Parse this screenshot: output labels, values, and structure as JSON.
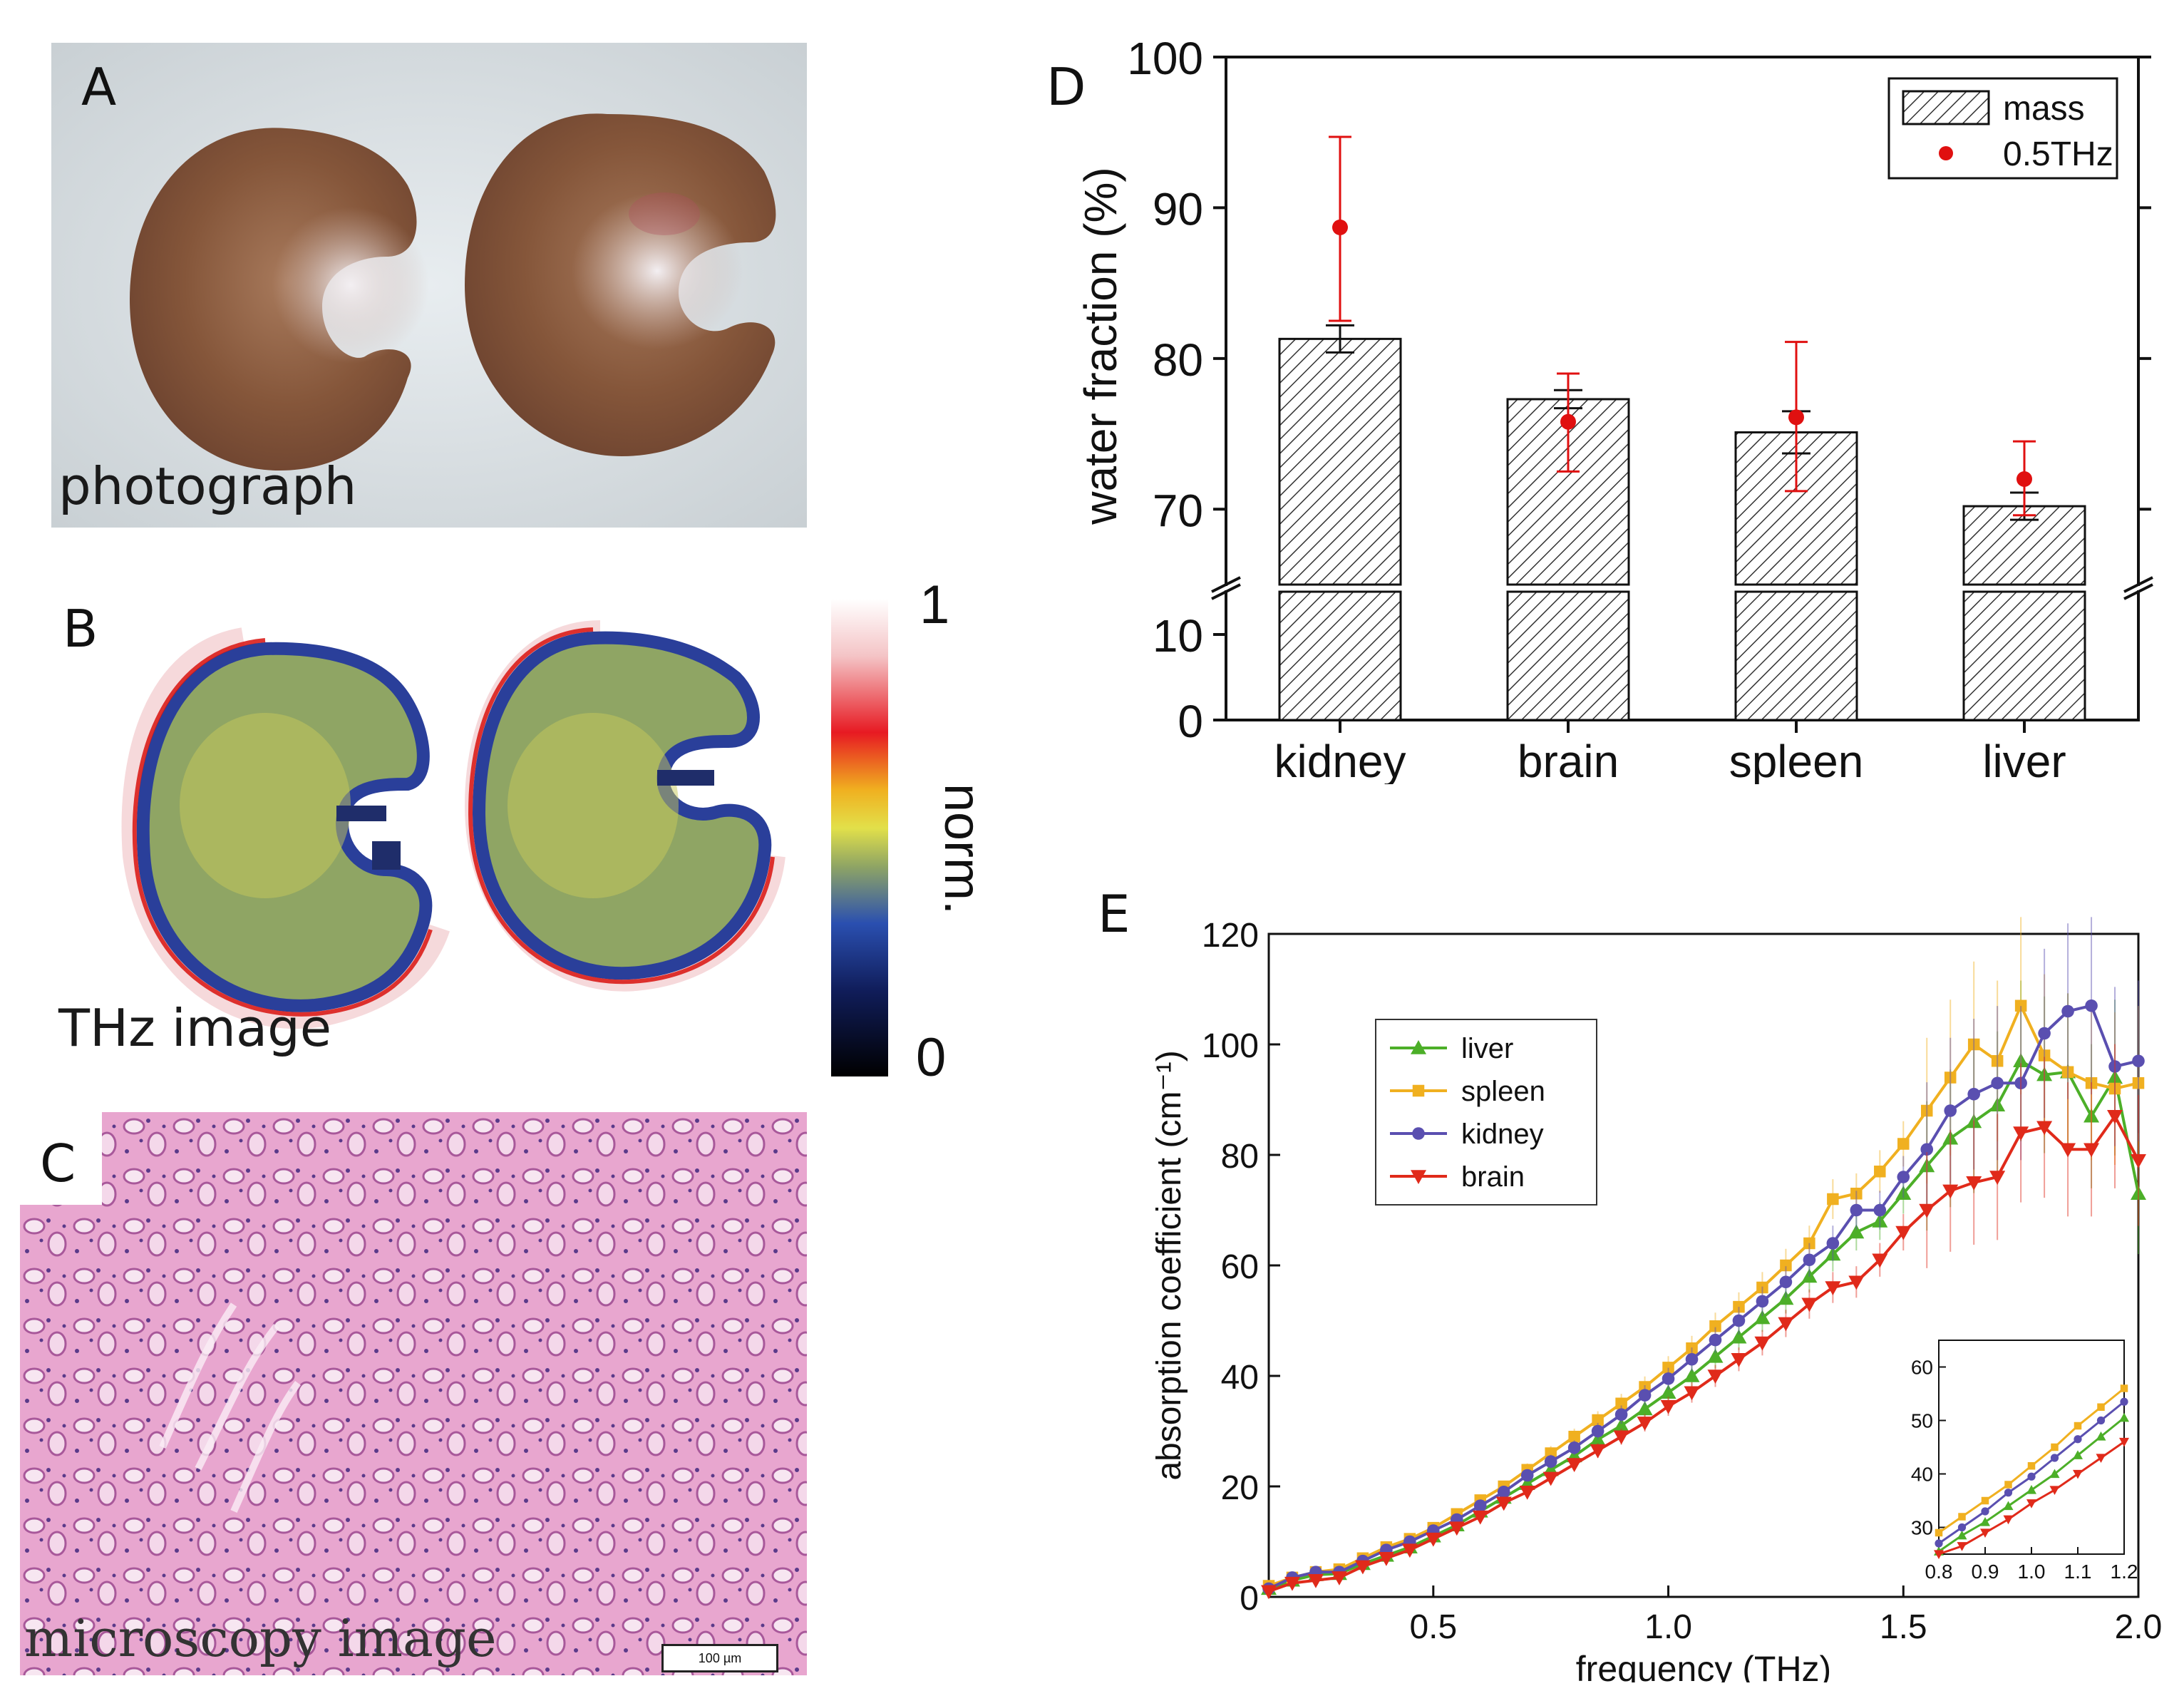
{
  "panels": {
    "a": {
      "letter": "A",
      "caption": "photograph"
    },
    "b": {
      "letter": "B",
      "caption": "THz image",
      "colorbar": {
        "max": "1",
        "min": "0",
        "label": "norm."
      }
    },
    "c": {
      "letter": "C",
      "caption": "microscopy image",
      "scalebar": "100 µm"
    },
    "d": {
      "letter": "D"
    },
    "e": {
      "letter": "E"
    }
  },
  "colors": {
    "tissue": "#7a4a30",
    "mass_hatch": "#333333",
    "marker_red": "#e01010",
    "liver": "#4caf28",
    "spleen": "#f0b020",
    "kidney": "#5a4fb0",
    "brain": "#e02a1a"
  },
  "chart_data": [
    {
      "id": "D",
      "type": "bar",
      "ylabel": "water fraction (%)",
      "categories": [
        "kidney",
        "brain",
        "spleen",
        "liver"
      ],
      "axis_break": {
        "lower": [
          0,
          15
        ],
        "upper": [
          65,
          100
        ]
      },
      "yticks_upper": [
        70,
        80,
        90,
        100
      ],
      "yticks_lower": [
        0,
        10
      ],
      "series": [
        {
          "name": "mass",
          "kind": "hatched-bar",
          "values": [
            81.3,
            77.3,
            75.1,
            70.2
          ],
          "err": [
            0.9,
            0.6,
            1.4,
            0.9
          ]
        },
        {
          "name": "0.5THz",
          "kind": "marker",
          "values": [
            88.7,
            75.8,
            76.1,
            72.0
          ],
          "err_low": [
            6.2,
            3.3,
            4.9,
            2.4
          ],
          "err_high": [
            6.0,
            3.2,
            5.0,
            2.5
          ]
        }
      ],
      "legend": {
        "position": "top-right",
        "items": [
          "mass",
          "0.5THz"
        ]
      }
    },
    {
      "id": "E",
      "type": "line",
      "xlabel": "frequency (THz)",
      "ylabel": "absorption coefficient (cm⁻¹)",
      "xlim": [
        0.15,
        2.0
      ],
      "ylim": [
        0,
        120
      ],
      "xticks": [
        "0.5",
        "1.0",
        "1.5",
        "2.0"
      ],
      "yticks": [
        "0",
        "20",
        "40",
        "60",
        "80",
        "100",
        "120"
      ],
      "x": [
        0.15,
        0.2,
        0.25,
        0.3,
        0.35,
        0.4,
        0.45,
        0.5,
        0.55,
        0.6,
        0.65,
        0.7,
        0.75,
        0.8,
        0.85,
        0.9,
        0.95,
        1.0,
        1.05,
        1.1,
        1.15,
        1.2,
        1.25,
        1.3,
        1.35,
        1.4,
        1.45,
        1.5,
        1.55,
        1.6,
        1.65,
        1.7,
        1.75,
        1.8,
        1.85,
        1.9,
        1.95,
        2.0
      ],
      "series": [
        {
          "name": "liver",
          "marker": "triangle-up",
          "values": [
            1.5,
            3.0,
            4.0,
            4.2,
            6.0,
            7.5,
            9.0,
            11.0,
            13.0,
            15.5,
            18.0,
            20.5,
            23.0,
            25.5,
            28.5,
            31.0,
            34.0,
            37.0,
            40.0,
            43.5,
            47.0,
            50.5,
            54.0,
            58.0,
            62.0,
            66.0,
            68.0,
            73.0,
            78.0,
            83.0,
            86.0,
            89.0,
            97.0,
            94.5,
            95.0,
            87.0,
            94.0,
            73.0
          ]
        },
        {
          "name": "spleen",
          "marker": "square",
          "values": [
            2.0,
            3.5,
            4.5,
            5.0,
            7.0,
            9.0,
            10.5,
            12.5,
            15.0,
            17.5,
            20.0,
            23.0,
            26.0,
            29.0,
            32.0,
            35.0,
            38.0,
            41.5,
            45.0,
            49.0,
            52.5,
            56.0,
            60.0,
            64.0,
            72.0,
            73.0,
            77.0,
            82.0,
            88.0,
            94.0,
            100.0,
            97.0,
            107.0,
            98.0,
            95.0,
            93.0,
            92.0,
            93.0
          ]
        },
        {
          "name": "kidney",
          "marker": "circle",
          "values": [
            1.5,
            3.5,
            4.5,
            4.5,
            6.5,
            8.5,
            10.0,
            12.0,
            14.0,
            16.5,
            19.0,
            22.0,
            24.5,
            27.0,
            30.0,
            33.0,
            36.5,
            39.5,
            43.0,
            46.5,
            50.0,
            53.5,
            57.0,
            61.0,
            64.0,
            70.0,
            70.0,
            76.0,
            81.0,
            88.0,
            91.0,
            93.0,
            93.0,
            102.0,
            106.0,
            107.0,
            96.0,
            97.0
          ]
        },
        {
          "name": "brain",
          "marker": "triangle-down",
          "values": [
            1.0,
            2.5,
            3.0,
            3.5,
            5.5,
            7.0,
            8.5,
            10.5,
            12.5,
            14.5,
            17.0,
            19.0,
            21.5,
            24.0,
            26.5,
            29.0,
            31.5,
            34.5,
            37.0,
            40.0,
            43.0,
            46.0,
            49.5,
            53.0,
            56.0,
            57.0,
            61.0,
            66.0,
            70.0,
            73.5,
            75.0,
            76.0,
            84.0,
            85.0,
            81.0,
            81.0,
            87.0,
            79.0
          ]
        }
      ],
      "legend": {
        "position": "top-left",
        "items": [
          "liver",
          "spleen",
          "kidney",
          "brain"
        ]
      },
      "inset": {
        "xlim": [
          0.8,
          1.2
        ],
        "ylim": [
          25,
          65
        ],
        "xticks": [
          "0.8",
          "0.9",
          "1.0",
          "1.1",
          "1.2"
        ],
        "yticks": [
          "30",
          "40",
          "50",
          "60"
        ]
      }
    }
  ]
}
